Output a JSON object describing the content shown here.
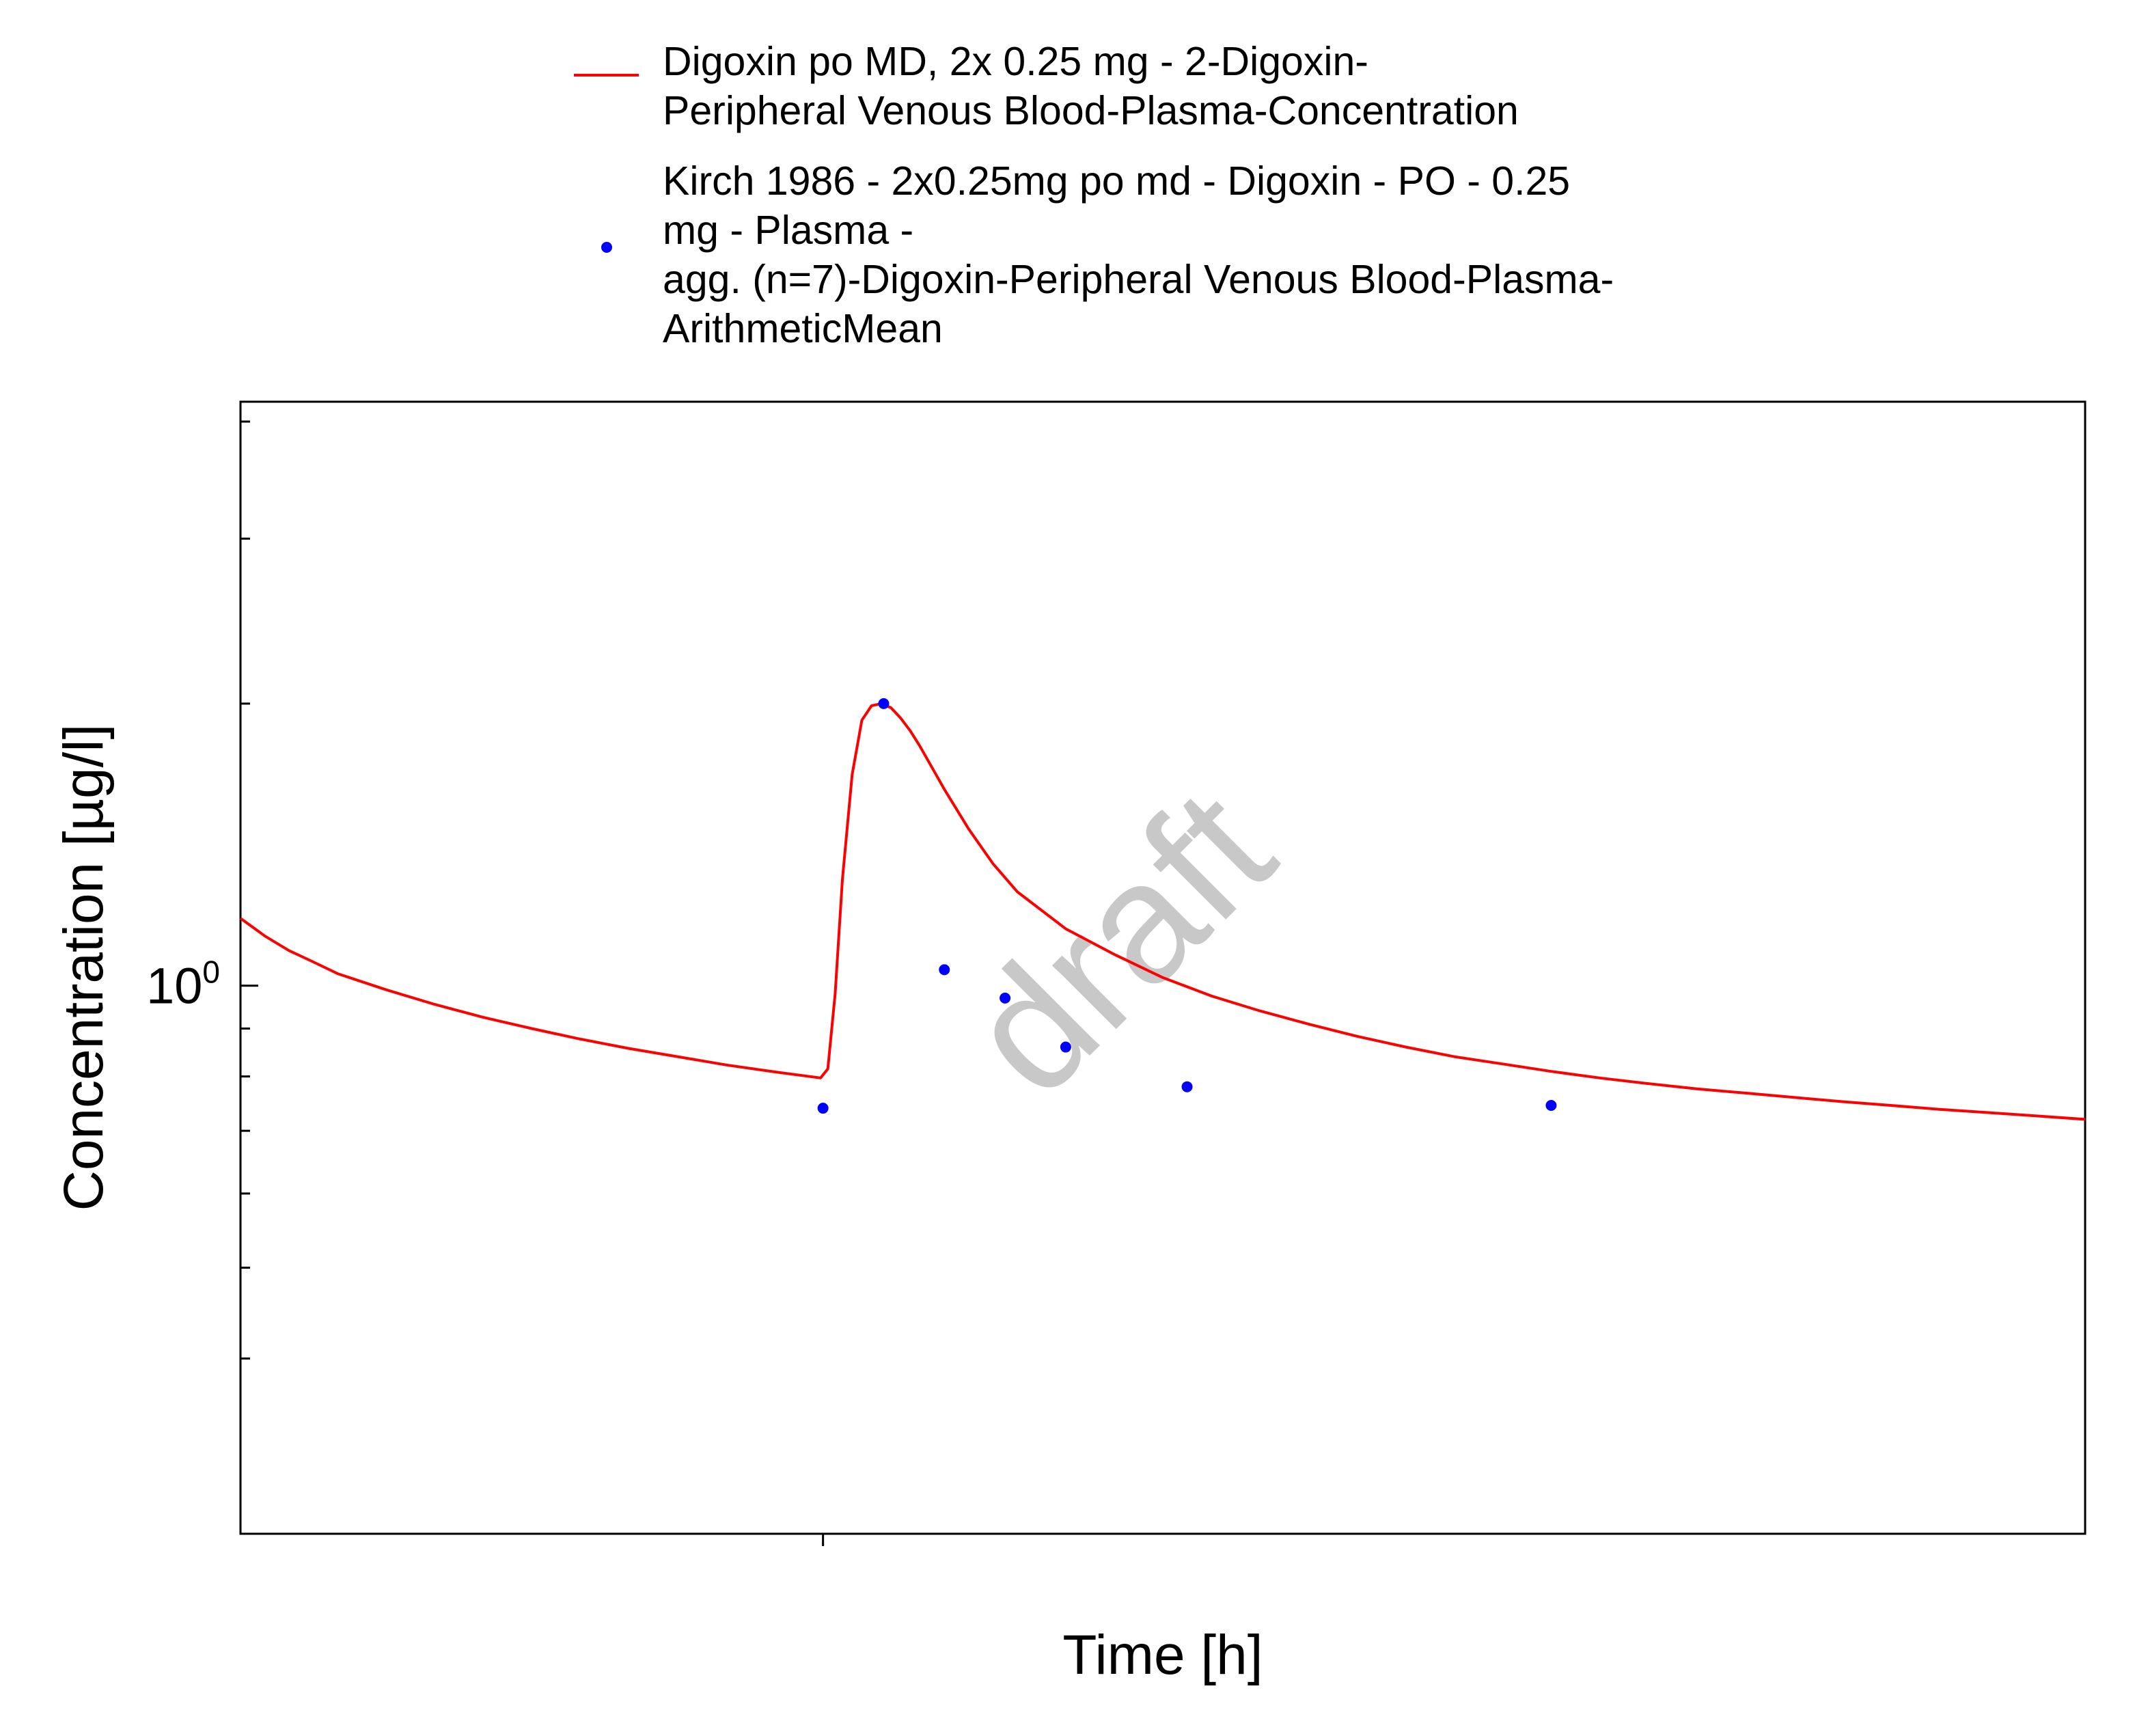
{
  "chart_data": {
    "type": "line",
    "title": "",
    "xlabel": "Time [h]",
    "ylabel": "Concentration [µg/l]",
    "y_scale": "log",
    "xlim": [
      -24,
      52
    ],
    "ylim": [
      0.26,
      4.2
    ],
    "y_major_tick": {
      "value": 1,
      "label_base": "10",
      "label_exp": "0"
    },
    "x_ticks": [
      0
    ],
    "y_minor_ticks": [
      0.4,
      0.5,
      0.6,
      0.7,
      0.8,
      0.9,
      2,
      3,
      4
    ],
    "grid": false,
    "legend_position": "top",
    "watermark": "draft",
    "colors": {
      "simulation": "#ff0000",
      "observed": "#0000ff"
    },
    "series": [
      {
        "name": "Digoxin po MD, 2x 0.25 mg - 2-Digoxin-Peripheral Venous Blood-Plasma-Concentration",
        "legend_lines": [
          "Digoxin po MD, 2x 0.25 mg - 2-Digoxin-",
          "Peripheral Venous Blood-Plasma-Concentration"
        ],
        "style": "line",
        "x": [
          -24,
          -23,
          -22,
          -21,
          -20,
          -18,
          -16,
          -14,
          -12,
          -10,
          -8,
          -6,
          -4,
          -2,
          -0.1,
          0.2,
          0.5,
          0.8,
          1.2,
          1.6,
          2,
          2.4,
          2.8,
          3.2,
          3.6,
          4,
          5,
          6,
          7,
          8,
          10,
          12,
          14,
          16,
          18,
          20,
          22,
          24,
          26,
          28,
          30,
          32,
          34,
          36,
          38,
          40,
          42,
          44,
          46,
          48,
          50,
          52
        ],
        "y": [
          1.18,
          1.13,
          1.09,
          1.06,
          1.03,
          0.99,
          0.955,
          0.925,
          0.9,
          0.877,
          0.857,
          0.84,
          0.823,
          0.809,
          0.797,
          0.815,
          0.98,
          1.3,
          1.68,
          1.92,
          1.99,
          2.0,
          1.98,
          1.93,
          1.87,
          1.8,
          1.62,
          1.47,
          1.35,
          1.26,
          1.15,
          1.08,
          1.02,
          0.975,
          0.94,
          0.91,
          0.883,
          0.86,
          0.84,
          0.825,
          0.81,
          0.797,
          0.786,
          0.776,
          0.768,
          0.76,
          0.752,
          0.745,
          0.738,
          0.732,
          0.726,
          0.72
        ]
      },
      {
        "name": "Kirch 1986 - 2x0.25mg po md - Digoxin - PO - 0.25 mg - Plasma - agg. (n=7)-Digoxin-Peripheral Venous Blood-Plasma-ArithmeticMean",
        "legend_lines": [
          "Kirch 1986 - 2x0.25mg po md - Digoxin - PO - 0.25",
          "mg - Plasma -",
          "agg. (n=7)-Digoxin-Peripheral Venous Blood-Plasma-",
          "ArithmeticMean"
        ],
        "style": "scatter",
        "x": [
          0,
          2.5,
          5,
          7.5,
          10,
          15,
          30
        ],
        "y": [
          0.74,
          2.0,
          1.04,
          0.97,
          0.86,
          0.78,
          0.745
        ]
      }
    ]
  }
}
